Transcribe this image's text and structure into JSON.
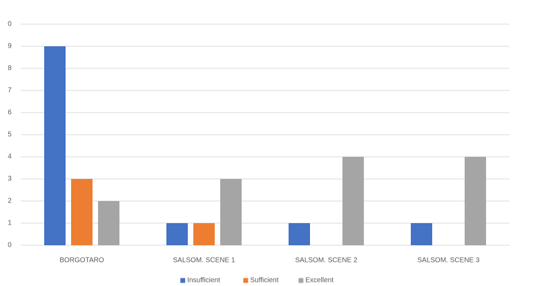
{
  "chart_data": {
    "type": "bar",
    "categories": [
      "BORGOTARO",
      "SALSOM. SCENE 1",
      "SALSOM. SCENE 2",
      "SALSOM. SCENE 3"
    ],
    "series": [
      {
        "name": "Insufficient",
        "color": "#4472c4",
        "values": [
          9,
          1,
          1,
          1
        ]
      },
      {
        "name": "Sufficient",
        "color": "#ed7d31",
        "values": [
          3,
          1,
          0,
          0
        ]
      },
      {
        "name": "Excellent",
        "color": "#a5a5a5",
        "values": [
          2,
          3,
          4,
          4
        ]
      }
    ],
    "ylim": [
      0,
      10
    ],
    "yticks": [
      0,
      1,
      2,
      3,
      4,
      5,
      6,
      7,
      8,
      9,
      {
        "value": 10,
        "label": "0"
      }
    ],
    "grid": true,
    "legend": "bottom"
  }
}
